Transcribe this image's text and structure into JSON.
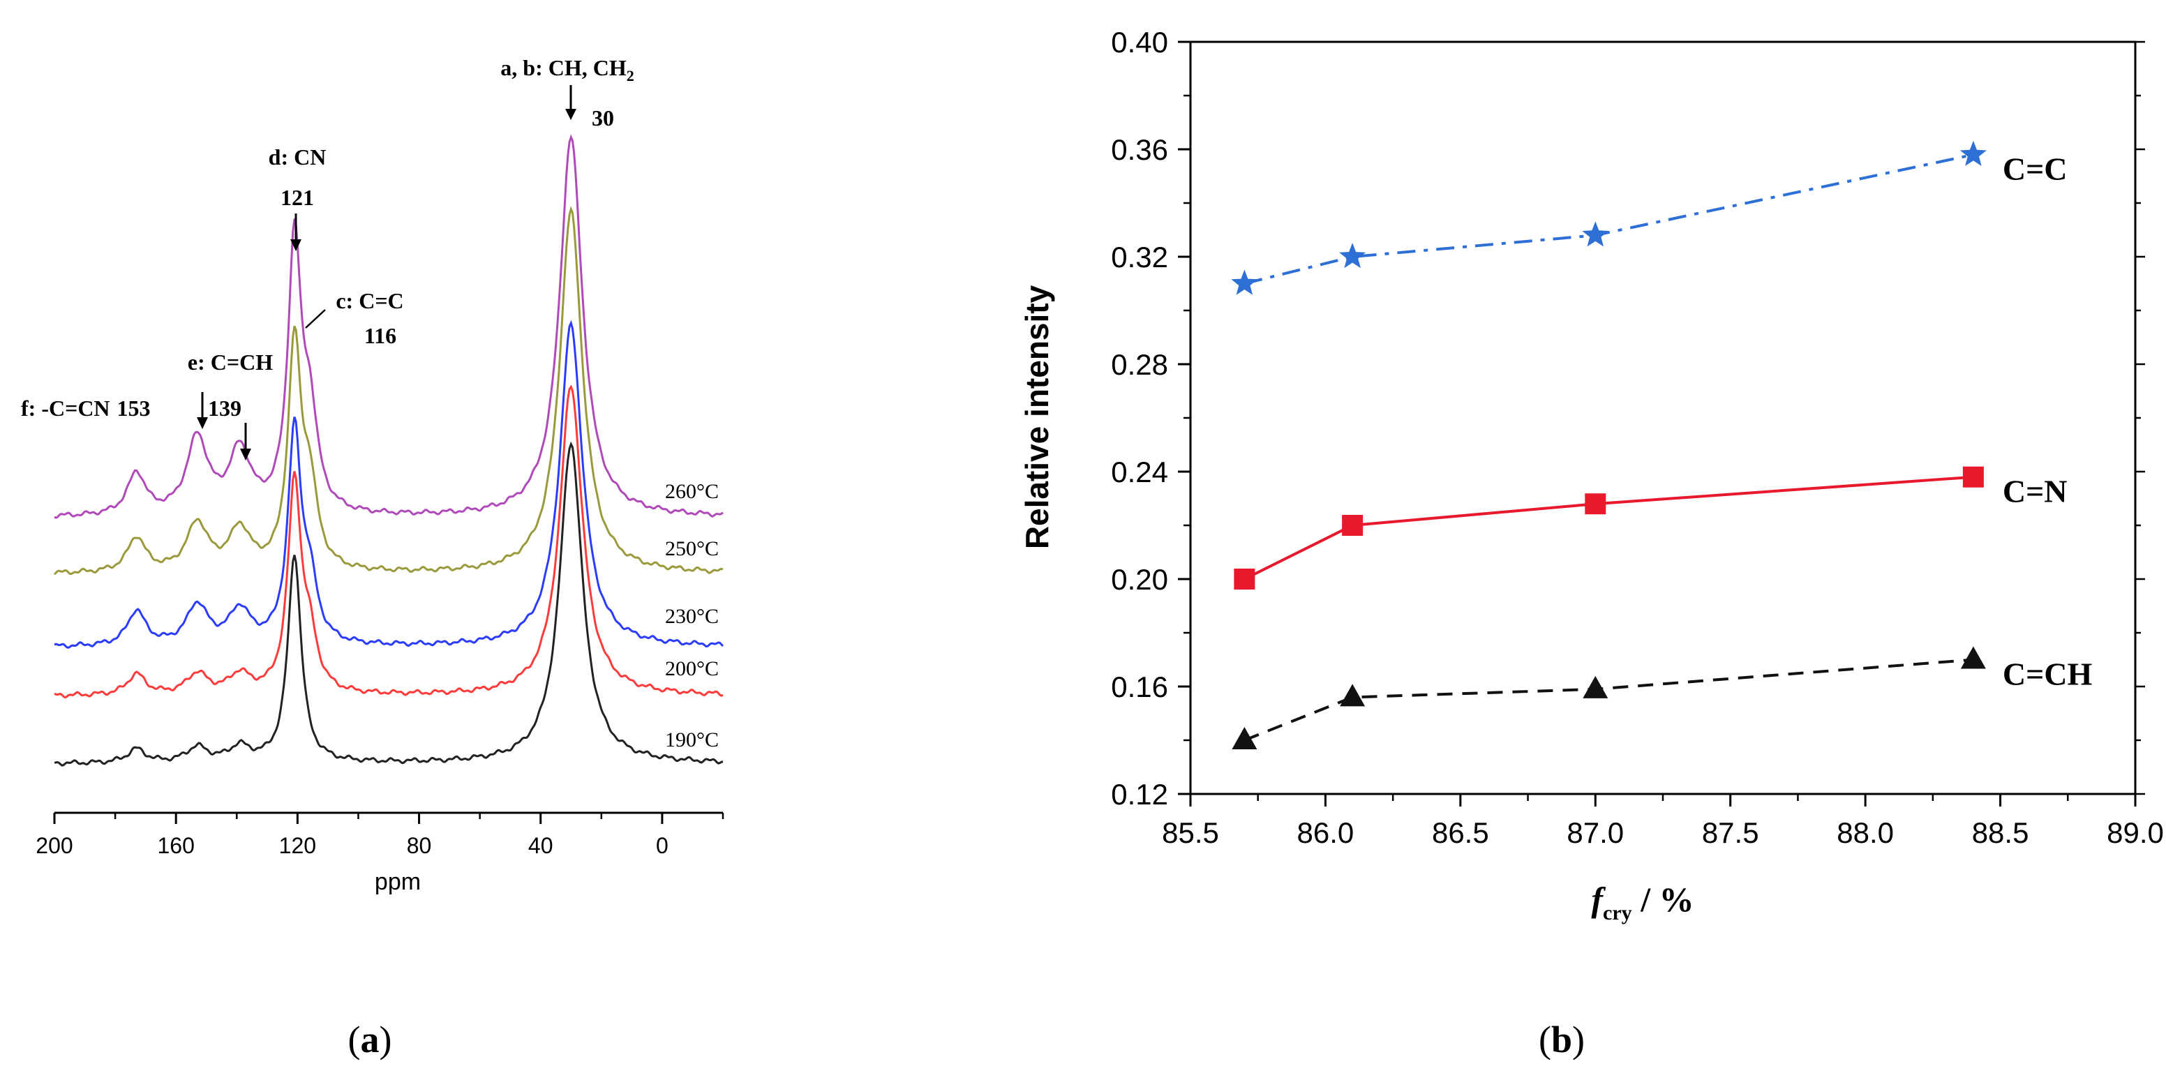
{
  "panel_labels": {
    "a": "a",
    "b": "b"
  },
  "chart_data": [
    {
      "type": "line",
      "xlabel": "ppm",
      "x_reversed": true,
      "xlim": [
        200,
        -20
      ],
      "xticks": [
        200,
        160,
        120,
        80,
        40,
        0
      ],
      "series": [
        {
          "name": "190°C",
          "color": "#222222"
        },
        {
          "name": "200°C",
          "color": "#ff3b3b"
        },
        {
          "name": "230°C",
          "color": "#2b3cff"
        },
        {
          "name": "250°C",
          "color": "#9a9a3c"
        },
        {
          "name": "260°C",
          "color": "#b04ab8"
        }
      ],
      "peaks_ppm": [
        30,
        116,
        121,
        139,
        153,
        173
      ],
      "annotations": [
        {
          "label": "a, b: CH, CH",
          "sub": "2",
          "value": "30",
          "ppm": 30
        },
        {
          "label": "d: CN",
          "value": "121",
          "ppm": 121
        },
        {
          "label": "c: C=C",
          "value": "116",
          "ppm": 116
        },
        {
          "label": "e: C=CH",
          "value": "139",
          "ppm": 139
        },
        {
          "label": "f: -C=CN",
          "value": "153",
          "ppm": 153
        }
      ]
    },
    {
      "type": "line",
      "xlabel_main": "f",
      "xlabel_sub": "cry",
      "xlabel_rest": " / %",
      "ylabel": "Relative intensity",
      "xlim": [
        85.5,
        89.0
      ],
      "ylim": [
        0.12,
        0.4
      ],
      "xticks": [
        "85.5",
        "86.0",
        "86.5",
        "87.0",
        "87.5",
        "88.0",
        "88.5",
        "89.0"
      ],
      "yticks": [
        "0.12",
        "0.16",
        "0.20",
        "0.24",
        "0.28",
        "0.32",
        "0.36",
        "0.40"
      ],
      "x": [
        85.7,
        86.1,
        87.0,
        88.4
      ],
      "series": [
        {
          "name": "C=C",
          "values": [
            0.31,
            0.32,
            0.328,
            0.358
          ],
          "color": "#2e6fd6",
          "marker": "star",
          "dash": "dashdot"
        },
        {
          "name": "C=N",
          "values": [
            0.2,
            0.22,
            0.228,
            0.238
          ],
          "color": "#e8192c",
          "marker": "square",
          "dash": "solid"
        },
        {
          "name": "C=CH",
          "values": [
            0.14,
            0.156,
            0.159,
            0.17
          ],
          "color": "#111111",
          "marker": "triangle",
          "dash": "dashed"
        }
      ]
    }
  ]
}
